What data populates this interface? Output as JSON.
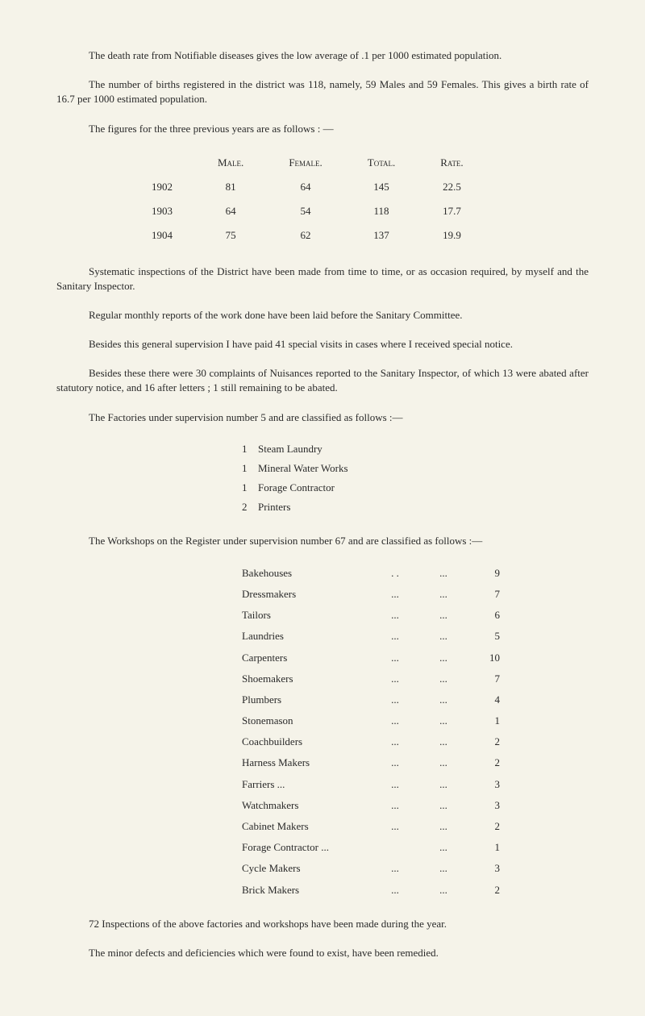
{
  "para1": "The death rate from Notifiable diseases gives the low average of .1 per 1000 estimated population.",
  "para2": "The number of births registered in the district was 118, namely, 59 Males and 59 Females. This gives a birth rate of 16.7 per 1000 estimated population.",
  "para3": "The figures for the three previous years are as follows : —",
  "ratesTable": {
    "headers": [
      "",
      "Male.",
      "Female.",
      "Total.",
      "Rate."
    ],
    "rows": [
      [
        "1902",
        "81",
        "64",
        "145",
        "22.5"
      ],
      [
        "1903",
        "64",
        "54",
        "118",
        "17.7"
      ],
      [
        "1904",
        "75",
        "62",
        "137",
        "19.9"
      ]
    ]
  },
  "para4": "Systematic inspections of the District have been made from time to time, or as occasion required, by myself and the Sanitary Inspector.",
  "para5": "Regular monthly reports of the work done have been laid before the Sanitary Committee.",
  "para6": "Besides this general supervision I have paid 41 special visits in cases where I received special notice.",
  "para7": "Besides these there were 30 complaints of Nuisances reported to the Sanitary Inspector, of which 13 were abated after statutory notice, and 16 after letters ; 1 still remaining to be abated.",
  "para8": "The Factories under supervision number 5 and are classified as follows :—",
  "factoryList": [
    {
      "n": "1",
      "t": "Steam Laundry"
    },
    {
      "n": "1",
      "t": "Mineral Water Works"
    },
    {
      "n": "1",
      "t": "Forage Contractor"
    },
    {
      "n": "2",
      "t": "Printers"
    }
  ],
  "para9": "The Workshops on the Register under supervision number 67 and are classified as follows :—",
  "workshopList": [
    {
      "label": "Bakehouses",
      "d1": ". .",
      "d2": "...",
      "num": "9"
    },
    {
      "label": "Dressmakers",
      "d1": "...",
      "d2": "...",
      "num": "7"
    },
    {
      "label": "Tailors",
      "d1": "...",
      "d2": "...",
      "num": "6"
    },
    {
      "label": "Laundries",
      "d1": "...",
      "d2": "...",
      "num": "5"
    },
    {
      "label": "Carpenters",
      "d1": "...",
      "d2": "...",
      "num": "10"
    },
    {
      "label": "Shoemakers",
      "d1": "...",
      "d2": "...",
      "num": "7"
    },
    {
      "label": "Plumbers",
      "d1": "...",
      "d2": "...",
      "num": "4"
    },
    {
      "label": "Stonemason",
      "d1": "...",
      "d2": "...",
      "num": "1"
    },
    {
      "label": "Coachbuilders",
      "d1": "...",
      "d2": "...",
      "num": "2"
    },
    {
      "label": "Harness Makers",
      "d1": "...",
      "d2": "...",
      "num": "2"
    },
    {
      "label": "Farriers ...",
      "d1": "...",
      "d2": "...",
      "num": "3"
    },
    {
      "label": "Watchmakers",
      "d1": "...",
      "d2": "...",
      "num": "3"
    },
    {
      "label": "Cabinet Makers",
      "d1": "...",
      "d2": "...",
      "num": "2"
    },
    {
      "label": "Forage Contractor ...",
      "d1": "",
      "d2": "...",
      "num": "1"
    },
    {
      "label": "Cycle Makers",
      "d1": "...",
      "d2": "...",
      "num": "3"
    },
    {
      "label": "Brick Makers",
      "d1": "...",
      "d2": "...",
      "num": "2"
    }
  ],
  "para10": "72 Inspections of the above factories and workshops have been made during the year.",
  "para11": "The minor defects and deficiencies which were found to exist, have been remedied."
}
